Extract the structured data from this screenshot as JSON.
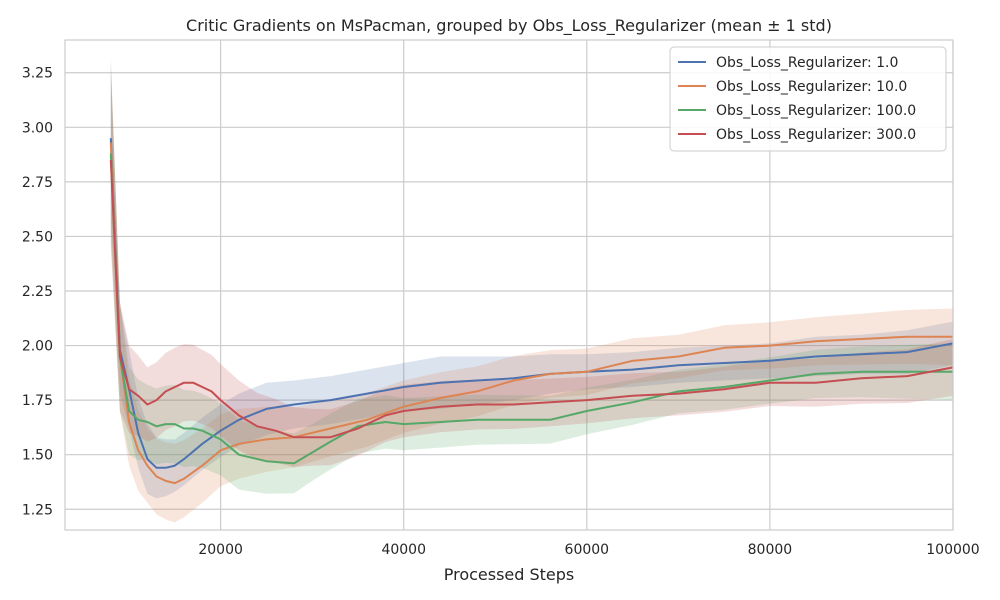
{
  "chart_data": {
    "type": "line",
    "title": "Critic Gradients on MsPacman, grouped by Obs_Loss_Regularizer (mean ± 1 std)",
    "xlabel": "Processed Steps",
    "ylabel": "",
    "xlim": [
      3000,
      100000
    ],
    "ylim": [
      1.155,
      3.4
    ],
    "xticks": [
      20000,
      40000,
      60000,
      80000,
      100000
    ],
    "yticks": [
      1.25,
      1.5,
      1.75,
      2.0,
      2.25,
      2.5,
      2.75,
      3.0,
      3.25
    ],
    "grid": true,
    "legend_position": "top-right",
    "series": [
      {
        "name": "Obs_Loss_Regularizer: 1.0",
        "color": "#4c72b0",
        "x": [
          8000,
          9000,
          10000,
          11000,
          12000,
          13000,
          14000,
          15000,
          16000,
          18000,
          20000,
          22000,
          25000,
          28000,
          32000,
          36000,
          40000,
          44000,
          48000,
          52000,
          56000,
          60000,
          65000,
          70000,
          75000,
          80000,
          85000,
          90000,
          95000,
          100000
        ],
        "values": [
          2.95,
          1.98,
          1.8,
          1.6,
          1.48,
          1.44,
          1.44,
          1.45,
          1.48,
          1.55,
          1.61,
          1.66,
          1.71,
          1.73,
          1.75,
          1.78,
          1.81,
          1.83,
          1.84,
          1.85,
          1.87,
          1.88,
          1.89,
          1.91,
          1.92,
          1.93,
          1.95,
          1.96,
          1.97,
          2.01
        ],
        "std": [
          0.35,
          0.2,
          0.18,
          0.16,
          0.16,
          0.14,
          0.13,
          0.12,
          0.12,
          0.12,
          0.12,
          0.12,
          0.12,
          0.11,
          0.11,
          0.11,
          0.11,
          0.12,
          0.11,
          0.1,
          0.09,
          0.08,
          0.08,
          0.08,
          0.08,
          0.08,
          0.09,
          0.09,
          0.1,
          0.1
        ]
      },
      {
        "name": "Obs_Loss_Regularizer: 10.0",
        "color": "#dd8452",
        "x": [
          8000,
          9000,
          10000,
          11000,
          12000,
          13000,
          14000,
          15000,
          16000,
          18000,
          20000,
          22000,
          25000,
          28000,
          32000,
          36000,
          40000,
          44000,
          48000,
          52000,
          56000,
          60000,
          65000,
          70000,
          75000,
          80000,
          85000,
          90000,
          95000,
          100000
        ],
        "values": [
          2.93,
          1.95,
          1.65,
          1.52,
          1.45,
          1.4,
          1.38,
          1.37,
          1.39,
          1.45,
          1.52,
          1.55,
          1.57,
          1.58,
          1.62,
          1.66,
          1.72,
          1.76,
          1.79,
          1.84,
          1.87,
          1.88,
          1.93,
          1.95,
          1.99,
          2.0,
          2.02,
          2.03,
          2.04,
          2.04
        ]
      },
      {
        "name": "Obs_Loss_Regularizer: 100.0",
        "color": "#55a868",
        "x": [
          8000,
          9000,
          10000,
          11000,
          12000,
          13000,
          14000,
          15000,
          16000,
          17000,
          18000,
          20000,
          22000,
          25000,
          28000,
          30000,
          32000,
          35000,
          38000,
          40000,
          44000,
          48000,
          52000,
          56000,
          60000,
          65000,
          70000,
          75000,
          80000,
          85000,
          90000,
          95000,
          100000
        ],
        "values": [
          2.88,
          1.95,
          1.7,
          1.66,
          1.65,
          1.63,
          1.64,
          1.64,
          1.62,
          1.62,
          1.61,
          1.57,
          1.5,
          1.47,
          1.46,
          1.51,
          1.56,
          1.63,
          1.65,
          1.64,
          1.65,
          1.66,
          1.66,
          1.66,
          1.7,
          1.74,
          1.79,
          1.81,
          1.84,
          1.87,
          1.88,
          1.88,
          1.88
        ]
      },
      {
        "name": "Obs_Loss_Regularizer: 300.0",
        "color": "#c44e52",
        "x": [
          8000,
          9000,
          10000,
          11000,
          12000,
          13000,
          14000,
          15000,
          16000,
          17000,
          18000,
          19000,
          20000,
          22000,
          24000,
          26000,
          28000,
          30000,
          32000,
          35000,
          38000,
          40000,
          44000,
          48000,
          52000,
          56000,
          60000,
          65000,
          70000,
          75000,
          80000,
          85000,
          90000,
          95000,
          100000
        ],
        "values": [
          2.85,
          1.95,
          1.8,
          1.77,
          1.73,
          1.75,
          1.79,
          1.81,
          1.83,
          1.83,
          1.81,
          1.79,
          1.75,
          1.68,
          1.63,
          1.61,
          1.58,
          1.58,
          1.58,
          1.62,
          1.68,
          1.7,
          1.72,
          1.73,
          1.73,
          1.74,
          1.75,
          1.77,
          1.78,
          1.8,
          1.83,
          1.83,
          1.85,
          1.86,
          1.9
        ]
      }
    ]
  }
}
